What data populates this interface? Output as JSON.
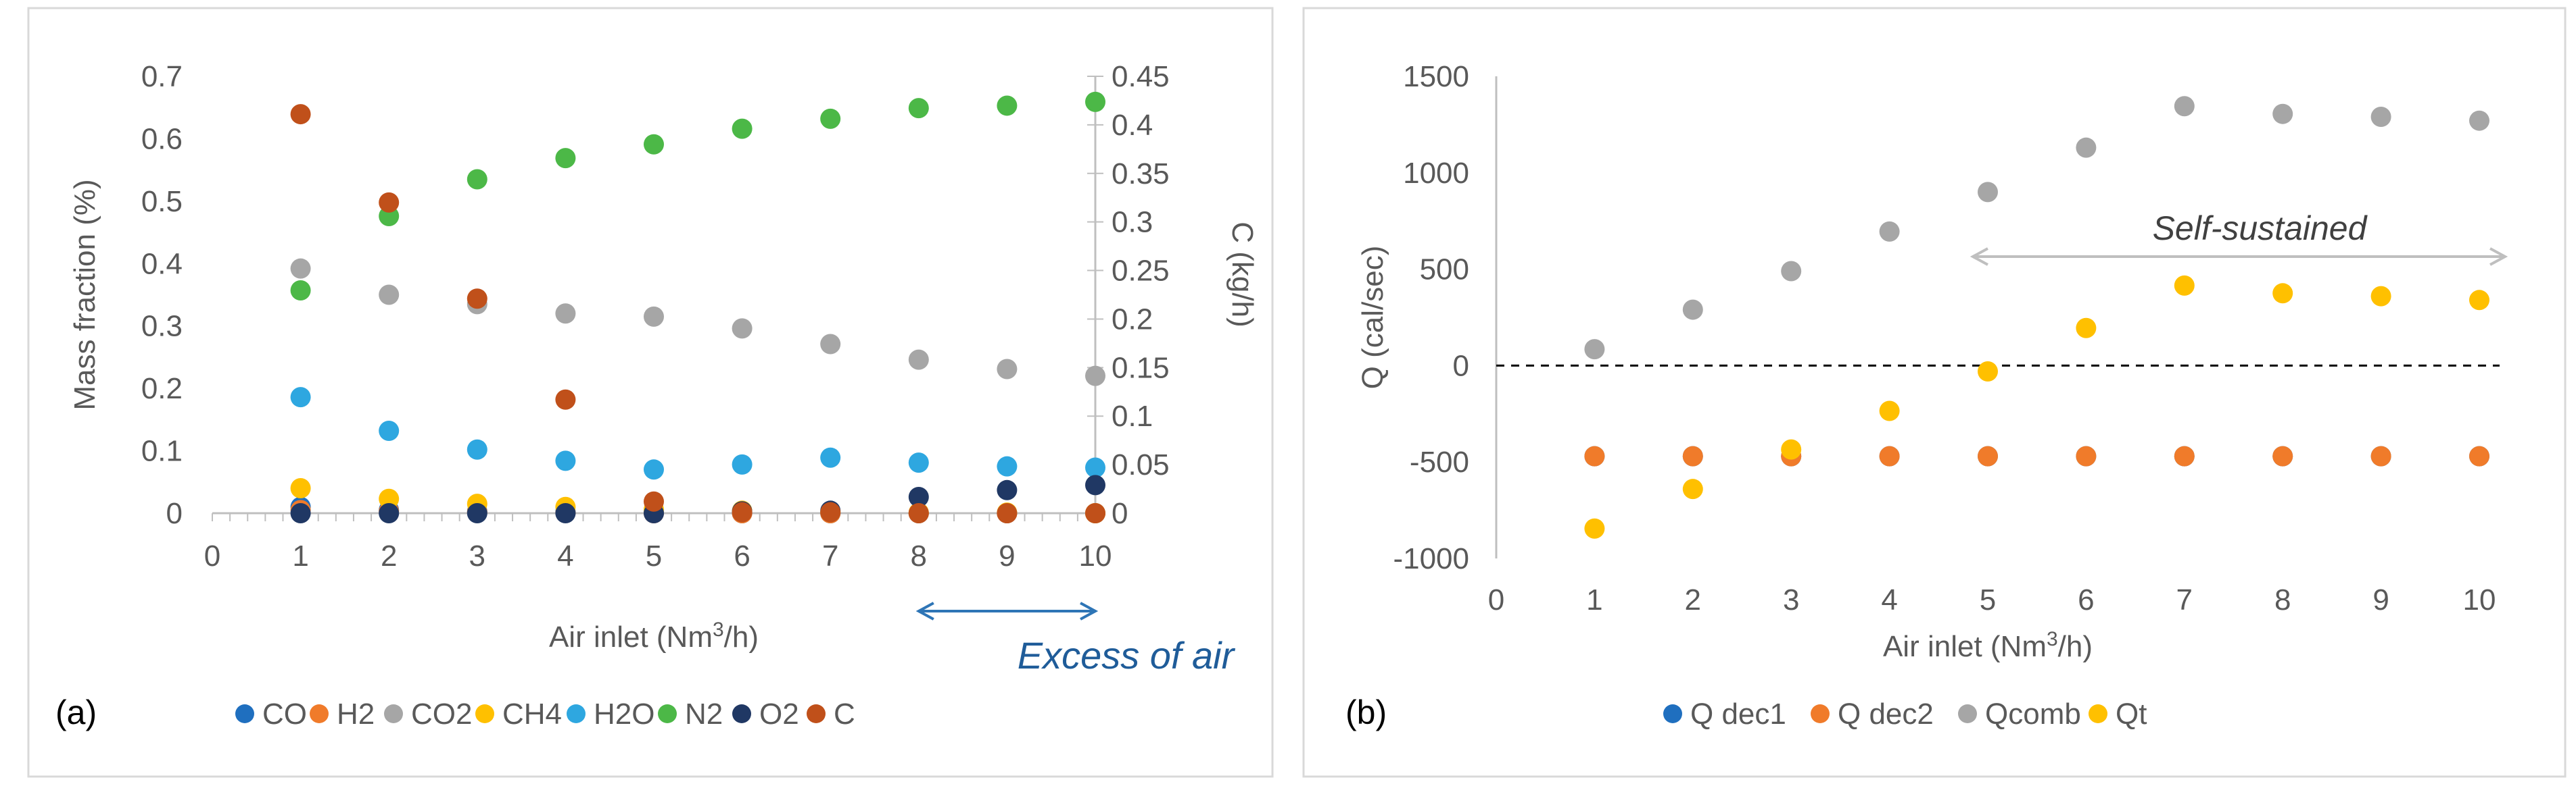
{
  "chart_data": [
    {
      "panel": "(a)",
      "type": "scatter",
      "xlabel": "Air inlet (Nm3/h)",
      "ylabel": "Mass fraction (%)",
      "y2label": "C (kg/h)",
      "xlim": [
        0,
        10
      ],
      "ylim": [
        0,
        0.7
      ],
      "y2lim": [
        0,
        0.45
      ],
      "x_ticks": [
        "0",
        "1",
        "2",
        "3",
        "4",
        "5",
        "6",
        "7",
        "8",
        "9",
        "10"
      ],
      "y_ticks": [
        "0",
        "0.1",
        "0.2",
        "0.3",
        "0.4",
        "0.5",
        "0.6",
        "0.7"
      ],
      "y2_ticks": [
        "0",
        "0.05",
        "0.1",
        "0.15",
        "0.2",
        "0.25",
        "0.3",
        "0.35",
        "0.4",
        "0.45"
      ],
      "annotation": "Excess of air",
      "annotation_range": [
        8,
        10
      ],
      "grid": false,
      "legend_position": "bottom",
      "x": [
        1,
        2,
        3,
        4,
        5,
        6,
        7,
        8,
        9,
        10
      ],
      "series": [
        {
          "name": "CO",
          "axis": "left",
          "color": "#1f6fbf",
          "values": [
            0.01,
            0.005,
            0.003,
            0.002,
            0.001,
            0,
            0,
            0,
            0,
            0
          ]
        },
        {
          "name": "H2",
          "axis": "left",
          "color": "#f07b2a",
          "values": [
            0.005,
            0.003,
            0.002,
            0.001,
            0,
            0,
            0,
            0,
            0,
            0
          ]
        },
        {
          "name": "CO2",
          "axis": "left",
          "color": "#a6a6a6",
          "values": [
            0.392,
            0.35,
            0.335,
            0.32,
            0.315,
            0.296,
            0.271,
            0.246,
            0.231,
            0.22
          ]
        },
        {
          "name": "CH4",
          "axis": "left",
          "color": "#ffc000",
          "values": [
            0.04,
            0.023,
            0.015,
            0.01,
            0.006,
            0.004,
            0.002,
            0.001,
            0.001,
            0
          ]
        },
        {
          "name": "H2O",
          "axis": "left",
          "color": "#2ea7e0",
          "values": [
            0.186,
            0.132,
            0.102,
            0.084,
            0.07,
            0.078,
            0.089,
            0.081,
            0.075,
            0.073
          ]
        },
        {
          "name": "N2",
          "axis": "left",
          "color": "#4cb847",
          "values": [
            0.357,
            0.476,
            0.535,
            0.569,
            0.591,
            0.616,
            0.632,
            0.649,
            0.653,
            0.659
          ]
        },
        {
          "name": "O2",
          "axis": "left",
          "color": "#203864",
          "values": [
            0,
            0,
            0,
            0,
            0,
            0.003,
            0.004,
            0.026,
            0.037,
            0.045
          ]
        },
        {
          "name": "C",
          "axis": "right",
          "color": "#c0501a",
          "values": [
            0.411,
            0.32,
            0.221,
            0.117,
            0.012,
            0.001,
            0.001,
            0,
            0,
            0
          ]
        }
      ],
      "legend": [
        "CO",
        "H2",
        "CO2",
        "CH4",
        "H2O",
        "N2",
        "O2",
        "C"
      ]
    },
    {
      "panel": "(b)",
      "type": "scatter",
      "xlabel": "Air inlet (Nm3/h)",
      "ylabel": "Q (cal/sec)",
      "xlim": [
        0,
        10
      ],
      "ylim": [
        -1000,
        1500
      ],
      "x_ticks": [
        "0",
        "1",
        "2",
        "3",
        "4",
        "5",
        "6",
        "7",
        "8",
        "9",
        "10"
      ],
      "y_ticks": [
        "-1000",
        "-500",
        "0",
        "500",
        "1000",
        "1500"
      ],
      "annotation": "Self-sustained",
      "annotation_range": [
        5,
        10
      ],
      "grid": false,
      "legend_position": "bottom",
      "x": [
        1,
        2,
        3,
        4,
        5,
        6,
        7,
        8,
        9,
        10
      ],
      "series": [
        {
          "name": "Q dec1",
          "color": "#1f6fbf",
          "values": [
            -470,
            -470,
            -470,
            -470,
            -470,
            -470,
            -470,
            -470,
            -470,
            -470
          ]
        },
        {
          "name": "Q dec2",
          "color": "#f07b2a",
          "values": [
            -470,
            -470,
            -470,
            -470,
            -470,
            -470,
            -470,
            -470,
            -470,
            -470
          ]
        },
        {
          "name": "Qcomb",
          "color": "#a6a6a6",
          "values": [
            85,
            290,
            490,
            695,
            900,
            1130,
            1345,
            1305,
            1290,
            1270
          ]
        },
        {
          "name": "Qt",
          "color": "#ffc000",
          "values": [
            -845,
            -640,
            -435,
            -235,
            -30,
            195,
            415,
            375,
            360,
            340
          ]
        }
      ],
      "legend": [
        "Q dec1",
        "Q dec2",
        "Qcomb",
        "Qt"
      ]
    }
  ]
}
